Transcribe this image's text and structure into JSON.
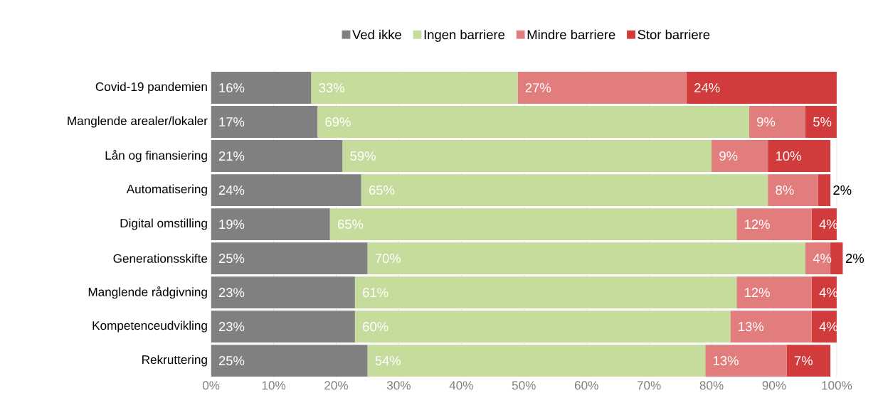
{
  "chart_data": {
    "type": "bar",
    "orientation": "horizontal",
    "stacked": true,
    "grid": "x",
    "legend": "top",
    "categories": [
      "Covid-19 pandemien",
      "Manglende arealer/lokaler",
      "Lån og finansiering",
      "Automatisering",
      "Digital omstilling",
      "Generationsskifte",
      "Manglende rådgivning",
      "Kompetenceudvikling",
      "Rekruttering"
    ],
    "xlim": [
      0,
      101
    ],
    "xticks": [
      {
        "value": 0,
        "label": "0%"
      },
      {
        "value": 10,
        "label": "10%"
      },
      {
        "value": 20,
        "label": "20%"
      },
      {
        "value": 30,
        "label": "30%"
      },
      {
        "value": 40,
        "label": "40%"
      },
      {
        "value": 50,
        "label": "50%"
      },
      {
        "value": 60,
        "label": "60%"
      },
      {
        "value": 70,
        "label": "70%"
      },
      {
        "value": 80,
        "label": "80%"
      },
      {
        "value": 90,
        "label": "90%"
      },
      {
        "value": 100,
        "label": "100%"
      }
    ],
    "series": [
      {
        "name": "Ved ikke",
        "color": "#808080",
        "values": [
          16,
          17,
          21,
          24,
          19,
          25,
          23,
          23,
          25
        ],
        "value_labels": [
          "16%",
          "17%",
          "21%",
          "24%",
          "19%",
          "25%",
          "23%",
          "23%",
          "25%"
        ]
      },
      {
        "name": "Ingen barriere",
        "color": "#c6dc9d",
        "values": [
          33,
          69,
          59,
          65,
          65,
          70,
          61,
          60,
          54
        ],
        "value_labels": [
          "33%",
          "69%",
          "59%",
          "65%",
          "65%",
          "70%",
          "61%",
          "60%",
          "54%"
        ]
      },
      {
        "name": "Mindre barriere",
        "color": "#e27d7d",
        "values": [
          27,
          9,
          9,
          8,
          12,
          4,
          12,
          13,
          13
        ],
        "value_labels": [
          "27%",
          "9%",
          "9%",
          "8%",
          "12%",
          "4%",
          "12%",
          "13%",
          "13%"
        ]
      },
      {
        "name": "Stor barriere",
        "color": "#d13b3b",
        "values": [
          24,
          5,
          10,
          2,
          4,
          2,
          4,
          4,
          7
        ],
        "value_labels": [
          "24%",
          "5%",
          "10%",
          "2%",
          "4%",
          "2%",
          "4%",
          "4%",
          "7%"
        ]
      }
    ]
  }
}
